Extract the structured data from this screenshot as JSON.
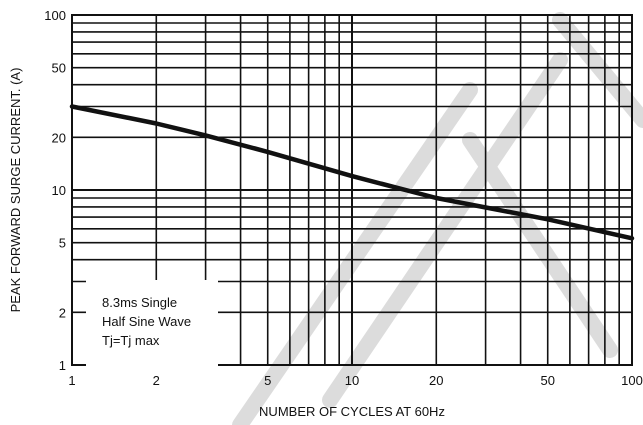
{
  "chart_data": {
    "type": "line",
    "title": "",
    "xlabel": "NUMBER OF CYCLES AT 60Hz",
    "ylabel": "PEAK FORWARD SURGE CURRENT. (A)",
    "x_scale": "log",
    "y_scale": "log",
    "xlim": [
      1,
      100
    ],
    "ylim": [
      1,
      100
    ],
    "x_ticks": [
      1,
      2,
      5,
      10,
      20,
      50,
      100
    ],
    "x_tick_labels": [
      "1",
      "2",
      "5",
      "10",
      "20",
      "50",
      "100"
    ],
    "y_ticks": [
      1,
      2,
      5,
      10,
      20,
      50,
      100
    ],
    "y_tick_labels": [
      "1",
      "2",
      "5",
      "10",
      "20",
      "50",
      "100"
    ],
    "grid": true,
    "legend": "none",
    "series": [
      {
        "x": [
          1,
          2,
          3,
          5,
          10,
          20,
          50,
          100
        ],
        "y": [
          30,
          24,
          20.5,
          16.5,
          12,
          9,
          6.8,
          5.3
        ],
        "color": "#111111"
      }
    ],
    "annotation": {
      "lines": [
        "8.3ms Single",
        "Half Sine Wave",
        "Tj=Tj max"
      ],
      "position": "bottom-left"
    },
    "colors": {
      "grid": "#111111",
      "line": "#111111",
      "background": "#ffffff",
      "watermark": "#dcdcdc"
    }
  }
}
